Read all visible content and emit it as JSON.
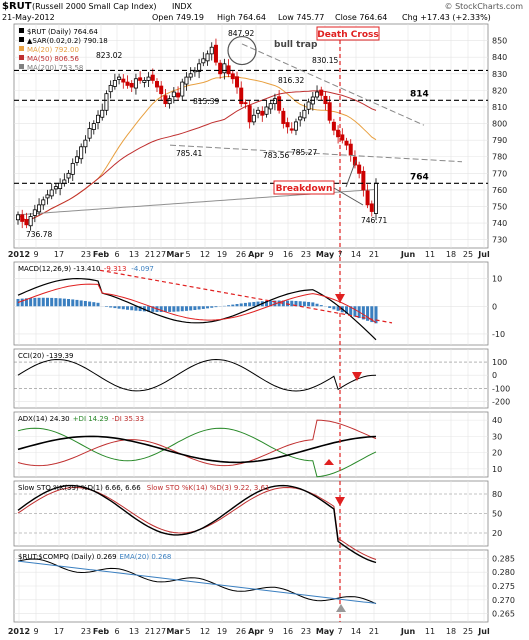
{
  "header": {
    "symbol": "$RUT",
    "name": "(Russell 2000 Small Cap Index)",
    "exchange": "INDX",
    "date": "21-May-2012",
    "open": "Open 749.19",
    "high": "High 764.64",
    "low": "Low 745.77",
    "close": "Close 764.64",
    "change": "Chg +17.43 (+2.33%)",
    "watermark": "© StockCharts.com"
  },
  "main_legend": [
    {
      "text": "$RUT (Daily) 764.64",
      "color": "#000000"
    },
    {
      "text": "▲SAR(0.02,0.2) 790.18",
      "color": "#000000"
    },
    {
      "text": "MA(20) 792.00",
      "color": "#e8a040"
    },
    {
      "text": "MA(50) 806.56",
      "color": "#c03030"
    },
    {
      "text": "MA(200) 753.58",
      "color": "#808080"
    }
  ],
  "x_ticks": [
    "2012",
    "9",
    "17",
    "23",
    "Feb",
    "6",
    "13",
    "21",
    "27",
    "Mar",
    "5",
    "12",
    "19",
    "26",
    "Apr",
    "9",
    "16",
    "23",
    "May",
    "7",
    "14",
    "21",
    "Jun",
    "11",
    "18",
    "25",
    "Jul"
  ],
  "chart_data": [
    {
      "type": "candlestick",
      "title": "$RUT (Russell 2000 Small Cap Index) INDX",
      "ylim": [
        725,
        860
      ],
      "y_ticks": [
        730,
        740,
        750,
        760,
        770,
        780,
        790,
        800,
        810,
        820,
        830,
        840,
        850
      ],
      "closes": [
        745,
        741,
        739,
        744,
        748,
        751,
        754,
        757,
        760,
        762,
        764,
        766,
        770,
        776,
        780,
        786,
        790,
        797,
        800,
        805,
        808,
        818,
        823,
        826,
        828,
        825,
        823,
        822,
        827,
        826,
        826,
        828,
        826,
        822,
        818,
        812,
        815,
        819,
        816,
        825,
        828,
        830,
        832,
        836,
        839,
        842,
        846,
        837,
        830,
        836,
        830,
        827,
        822,
        812,
        812,
        801,
        805,
        808,
        805,
        810,
        812,
        815,
        808,
        800,
        798,
        796,
        801,
        804,
        808,
        813,
        816,
        819,
        817,
        812,
        802,
        796,
        792,
        790,
        787,
        781,
        775,
        770,
        760,
        751,
        747,
        764
      ],
      "price_labels": [
        "736.78",
        "823.02",
        "847.92",
        "830.15",
        "816.32",
        "815.39",
        "785.41",
        "783.56",
        "785.27",
        "746.71"
      ],
      "levels": [
        "814",
        "764"
      ],
      "annotations": [
        "bull trap",
        "Death Cross",
        "Breakdown"
      ]
    },
    {
      "type": "line",
      "name": "MACD",
      "legend": [
        "MACD(12,26,9) -13.410",
        "-9.313",
        "-4.097"
      ],
      "ylim": [
        -14,
        16
      ],
      "y_ticks": [
        "10",
        "0",
        "-10"
      ]
    },
    {
      "type": "line",
      "name": "CCI",
      "legend": [
        "CCI(20) -139.39"
      ],
      "y_ticks": [
        "100",
        "0",
        "-100",
        "-200"
      ]
    },
    {
      "type": "line",
      "name": "ADX",
      "legend": [
        "ADX(14) 24.30",
        "+DI 14.29",
        "-DI 35.33"
      ],
      "y_ticks": [
        "40",
        "30",
        "20",
        "10"
      ]
    },
    {
      "type": "line",
      "name": "Slow STO",
      "legend": [
        "Slow STO %K(39) %D(1) 6.66, 6.66",
        "Slow STO %K(14) %D(3) 9.22, 3.61"
      ],
      "y_ticks": [
        "80",
        "50",
        "20"
      ]
    },
    {
      "type": "line",
      "name": "$RUT:$COMPQ",
      "legend": [
        "$RUT:$COMPQ (Daily) 0.269",
        "EMA(20) 0.268"
      ],
      "y_ticks": [
        "0.285",
        "0.280",
        "0.275",
        "0.270",
        "0.265"
      ]
    }
  ]
}
